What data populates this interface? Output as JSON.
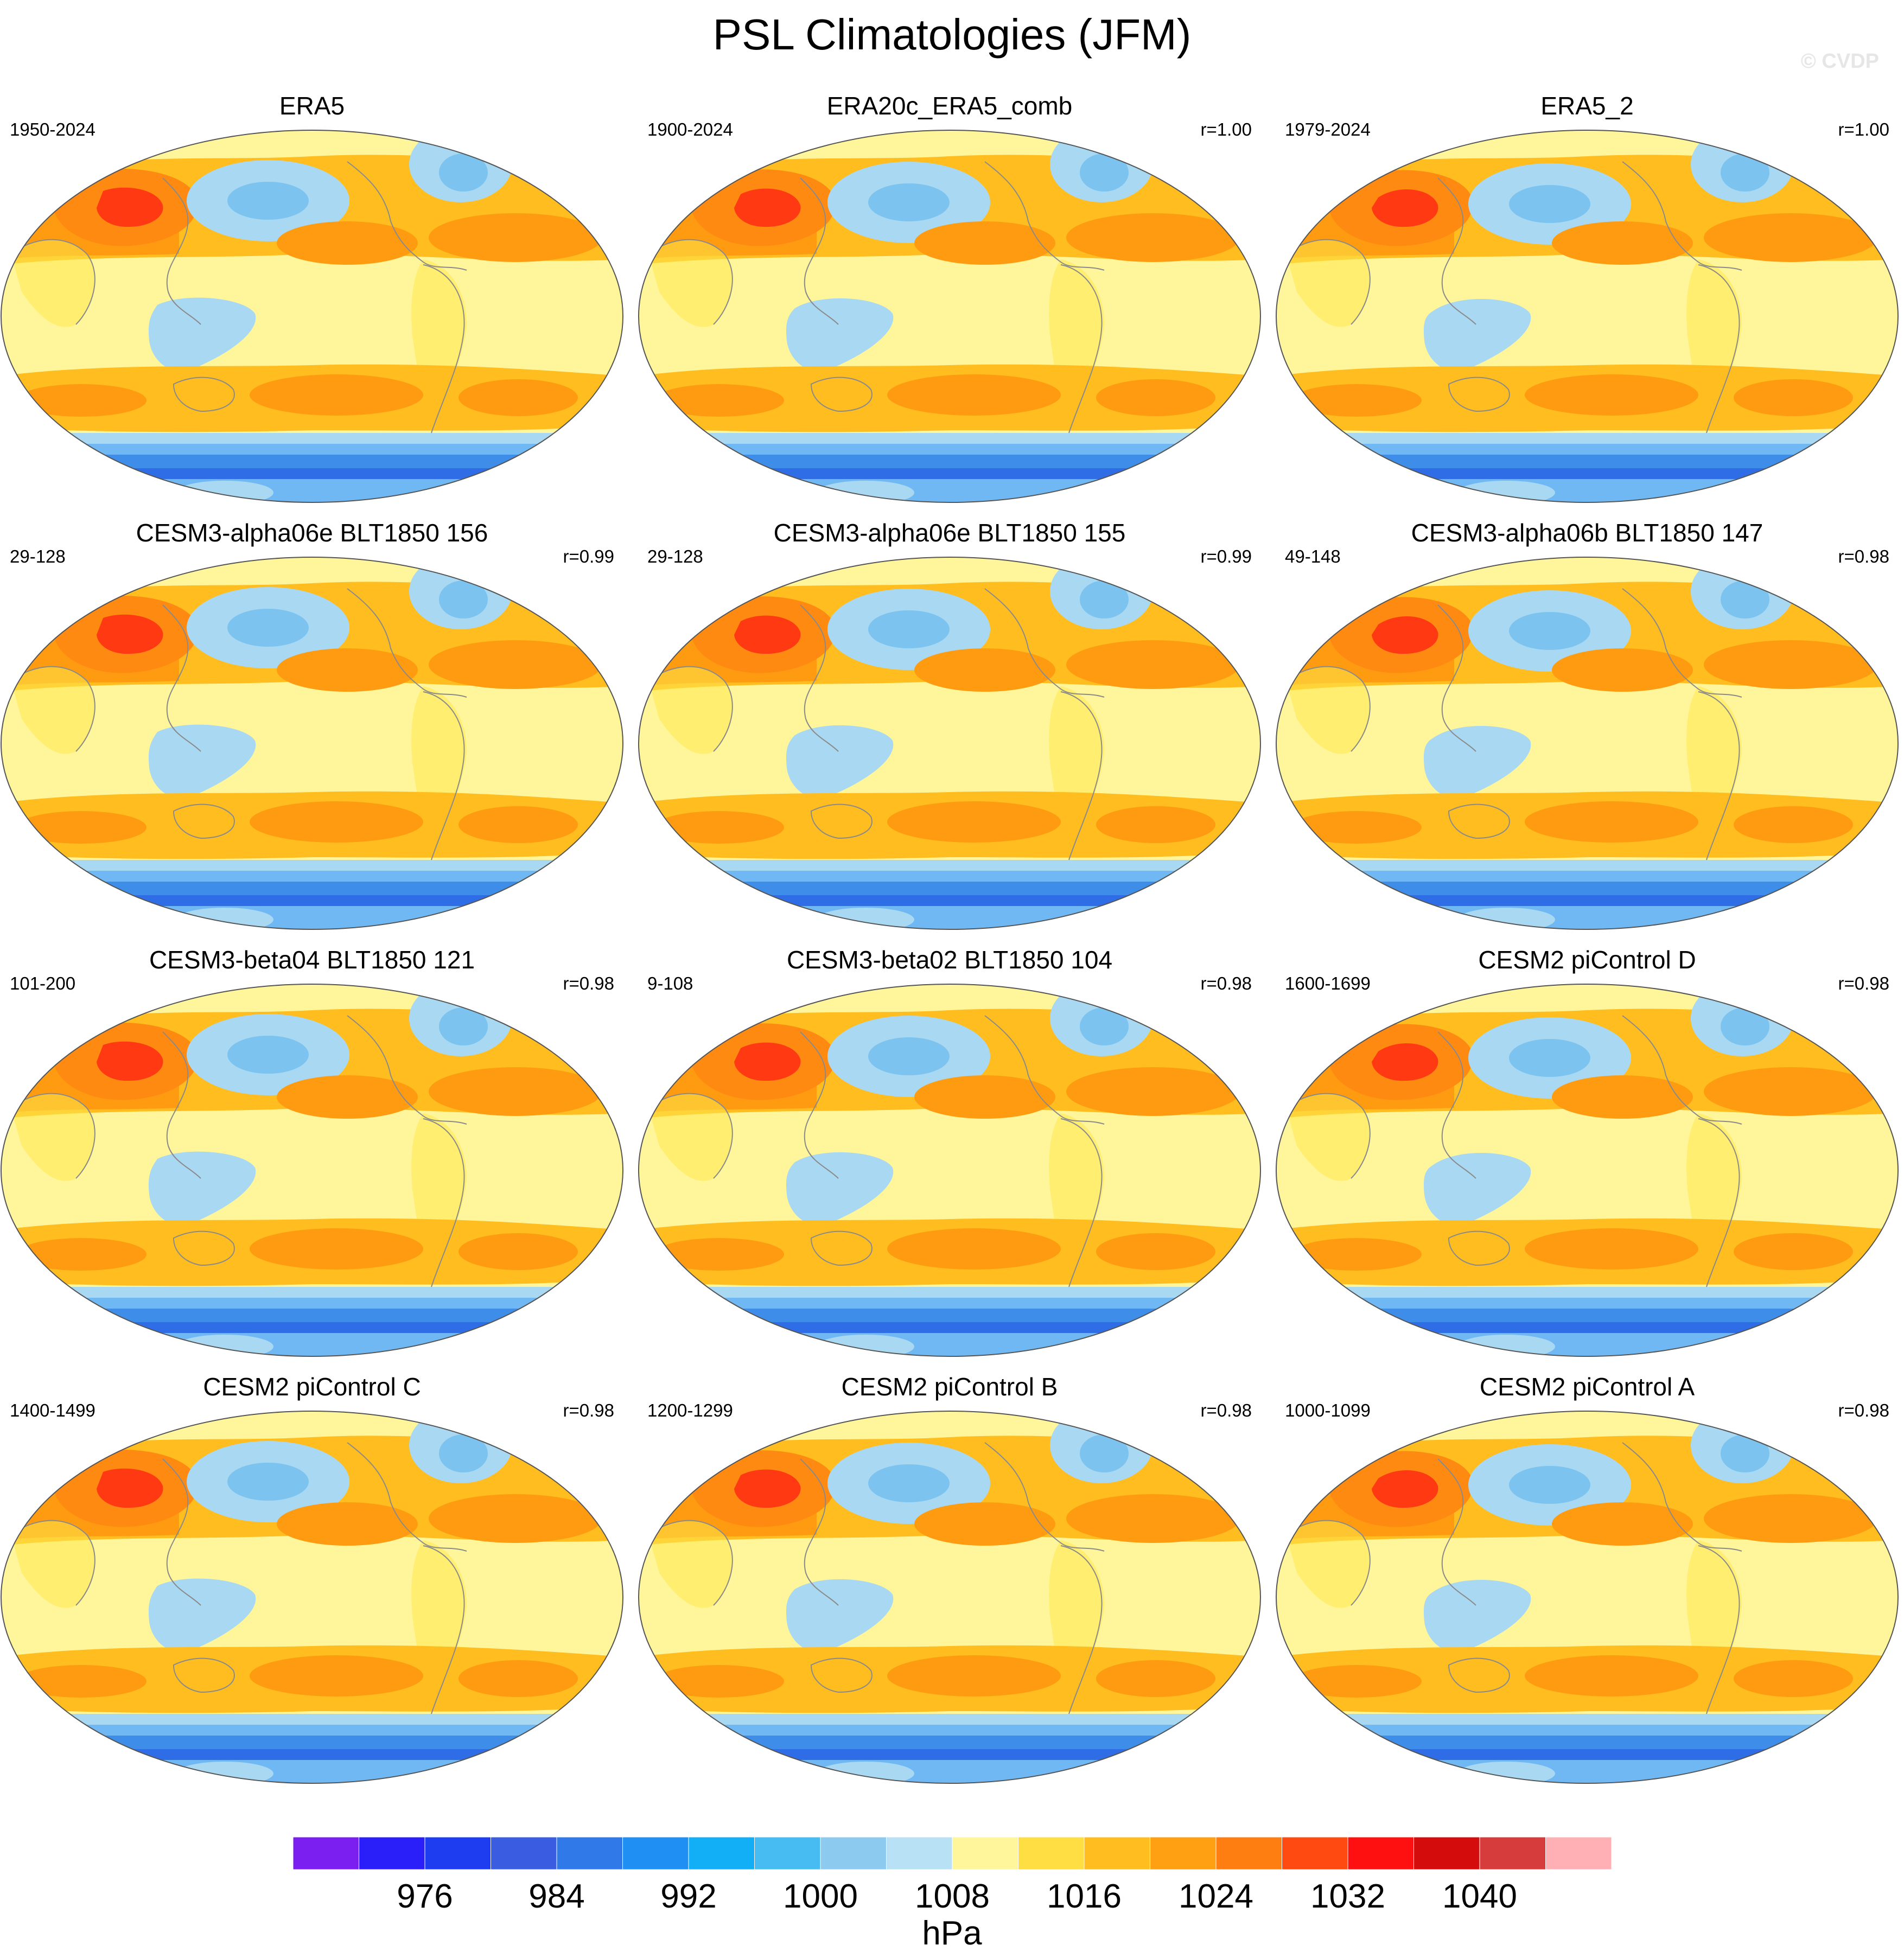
{
  "title": "PSL Climatologies (JFM)",
  "watermark": "© CVDP",
  "colors": {
    "ocean": "#fff59a",
    "land": "#ffe84d",
    "subtropical_high": "#ffbd1f",
    "high_core": "#ff9b10",
    "siberian_high_outer": "#ff8a12",
    "siberian_high_core": "#ff3a12",
    "aleutian_low": "#a9d8f2",
    "aleutian_low_core": "#7cc4ef",
    "southern_ocean_light": "#6fb8f3",
    "southern_ocean_mid": "#3d8de9",
    "southern_ocean_dark": "#2f6de6",
    "coastline": "#8a8a8a"
  },
  "panels": [
    {
      "title": "ERA5",
      "period": "1950-2024",
      "corr": ""
    },
    {
      "title": "ERA20c_ERA5_comb",
      "period": "1900-2024",
      "corr": "r=1.00"
    },
    {
      "title": "ERA5_2",
      "period": "1979-2024",
      "corr": "r=1.00"
    },
    {
      "title": "CESM3-alpha06e BLT1850 156",
      "period": "29-128",
      "corr": "r=0.99"
    },
    {
      "title": "CESM3-alpha06e BLT1850 155",
      "period": "29-128",
      "corr": "r=0.99"
    },
    {
      "title": "CESM3-alpha06b BLT1850 147",
      "period": "49-148",
      "corr": "r=0.98"
    },
    {
      "title": "CESM3-beta04 BLT1850 121",
      "period": "101-200",
      "corr": "r=0.98"
    },
    {
      "title": "CESM3-beta02 BLT1850 104",
      "period": "9-108",
      "corr": "r=0.98"
    },
    {
      "title": "CESM2 piControl D",
      "period": "1600-1699",
      "corr": "r=0.98"
    },
    {
      "title": "CESM2 piControl C",
      "period": "1400-1499",
      "corr": "r=0.98"
    },
    {
      "title": "CESM2 piControl B",
      "period": "1200-1299",
      "corr": "r=0.98"
    },
    {
      "title": "CESM2 piControl A",
      "period": "1000-1099",
      "corr": "r=0.98"
    }
  ],
  "colorbar": {
    "colors": [
      "#7a1ff0",
      "#2a1ff8",
      "#1f3df0",
      "#3a5ce0",
      "#2f7ae8",
      "#1f8ff3",
      "#12aef6",
      "#46bcf2",
      "#8ccaef",
      "#b8e1f6",
      "#fff59a",
      "#ffde44",
      "#ffbd1f",
      "#ff9f12",
      "#ff7e12",
      "#ff4a12",
      "#ff1010",
      "#d40c0c",
      "#d63c3c",
      "#ffb0b4"
    ],
    "labels": [
      "976",
      "984",
      "992",
      "1000",
      "1008",
      "1016",
      "1024",
      "1032",
      "1040"
    ],
    "label_box_index": [
      2,
      4,
      6,
      8,
      10,
      12,
      14,
      16,
      18
    ],
    "units": "hPa"
  }
}
